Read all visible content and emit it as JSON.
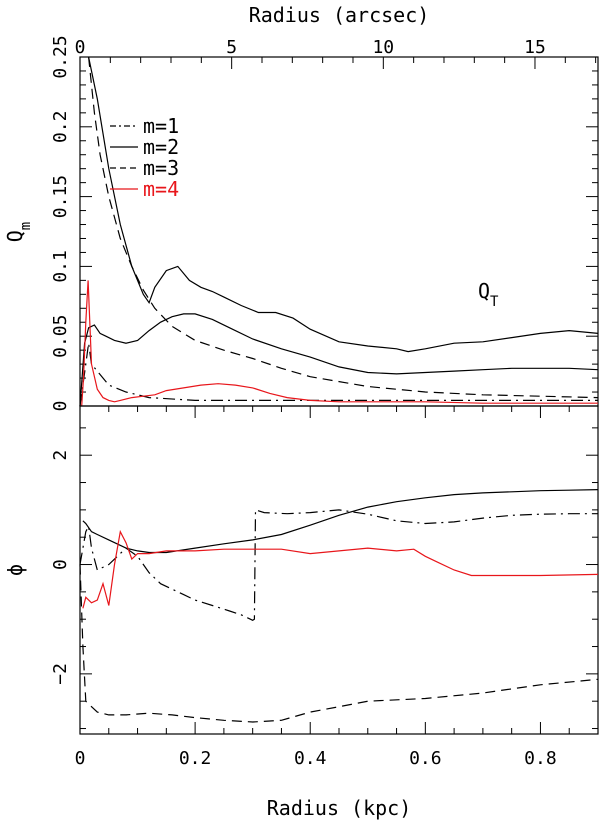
{
  "chart_data": [
    {
      "type": "line",
      "panel": "top",
      "top_axis_label": "Radius (arcsec)",
      "top_axis_ticks": [
        "0",
        "5",
        "10",
        "15"
      ],
      "top_axis_tick_values_arcsec": [
        0,
        5,
        10,
        15
      ],
      "ylabel": "Q_m",
      "ylim": [
        0,
        0.25
      ],
      "xlim": [
        0,
        0.9
      ],
      "yticks": [
        "0",
        "0.05",
        "0.1",
        "0.15",
        "0.2",
        "0.25"
      ],
      "ytick_values": [
        0,
        0.05,
        0.1,
        0.15,
        0.2,
        0.25
      ],
      "annotation": "Q_T",
      "legend": [
        {
          "label": "m=1",
          "style": "dashdot",
          "color": "#000000"
        },
        {
          "label": "m=2",
          "style": "solid",
          "color": "#000000"
        },
        {
          "label": "m=3",
          "style": "dashed",
          "color": "#000000"
        },
        {
          "label": "m=4",
          "style": "solid",
          "color": "#e8161b"
        }
      ],
      "series": [
        {
          "name": "Q_T",
          "style": "solid",
          "color": "#000000",
          "x": [
            0.015,
            0.03,
            0.05,
            0.07,
            0.09,
            0.11,
            0.12,
            0.13,
            0.15,
            0.17,
            0.19,
            0.21,
            0.23,
            0.25,
            0.28,
            0.31,
            0.34,
            0.37,
            0.4,
            0.45,
            0.5,
            0.55,
            0.57,
            0.6,
            0.65,
            0.7,
            0.75,
            0.8,
            0.85,
            0.9
          ],
          "y": [
            0.25,
            0.22,
            0.17,
            0.13,
            0.1,
            0.08,
            0.074,
            0.085,
            0.097,
            0.1,
            0.09,
            0.085,
            0.082,
            0.078,
            0.072,
            0.067,
            0.067,
            0.063,
            0.055,
            0.046,
            0.043,
            0.041,
            0.039,
            0.041,
            0.045,
            0.046,
            0.049,
            0.052,
            0.054,
            0.052
          ]
        },
        {
          "name": "m=1",
          "style": "dashdot",
          "color": "#000000",
          "x": [
            0.0,
            0.01,
            0.015,
            0.02,
            0.03,
            0.05,
            0.08,
            0.12,
            0.2,
            0.3,
            0.4,
            0.5,
            0.6,
            0.7,
            0.8,
            0.9
          ],
          "y": [
            0.0,
            0.03,
            0.045,
            0.03,
            0.025,
            0.015,
            0.01,
            0.006,
            0.004,
            0.004,
            0.004,
            0.004,
            0.004,
            0.004,
            0.004,
            0.004
          ]
        },
        {
          "name": "m=2",
          "style": "solid",
          "color": "#000000",
          "x": [
            0.0,
            0.008,
            0.015,
            0.025,
            0.035,
            0.045,
            0.06,
            0.08,
            0.1,
            0.12,
            0.14,
            0.16,
            0.18,
            0.2,
            0.23,
            0.26,
            0.3,
            0.35,
            0.4,
            0.45,
            0.5,
            0.55,
            0.6,
            0.65,
            0.7,
            0.75,
            0.8,
            0.85,
            0.9
          ],
          "y": [
            0.0,
            0.045,
            0.056,
            0.058,
            0.052,
            0.05,
            0.047,
            0.045,
            0.047,
            0.054,
            0.06,
            0.064,
            0.066,
            0.066,
            0.062,
            0.056,
            0.048,
            0.041,
            0.035,
            0.028,
            0.024,
            0.023,
            0.024,
            0.025,
            0.026,
            0.027,
            0.027,
            0.027,
            0.026
          ]
        },
        {
          "name": "m=3",
          "style": "dashed",
          "color": "#000000",
          "x": [
            0.015,
            0.025,
            0.035,
            0.05,
            0.07,
            0.09,
            0.11,
            0.13,
            0.16,
            0.2,
            0.25,
            0.3,
            0.35,
            0.4,
            0.5,
            0.6,
            0.7,
            0.8,
            0.9
          ],
          "y": [
            0.25,
            0.21,
            0.18,
            0.15,
            0.12,
            0.1,
            0.083,
            0.07,
            0.057,
            0.047,
            0.04,
            0.034,
            0.027,
            0.021,
            0.014,
            0.01,
            0.008,
            0.007,
            0.006
          ]
        },
        {
          "name": "m=4",
          "style": "solid",
          "color": "#e8161b",
          "x": [
            0.003,
            0.006,
            0.01,
            0.014,
            0.02,
            0.03,
            0.04,
            0.05,
            0.06,
            0.07,
            0.09,
            0.11,
            0.13,
            0.15,
            0.18,
            0.21,
            0.24,
            0.27,
            0.3,
            0.33,
            0.36,
            0.4,
            0.45,
            0.5,
            0.6,
            0.7,
            0.8,
            0.9
          ],
          "y": [
            0.0,
            0.02,
            0.06,
            0.09,
            0.03,
            0.012,
            0.006,
            0.004,
            0.003,
            0.004,
            0.006,
            0.007,
            0.008,
            0.011,
            0.013,
            0.015,
            0.016,
            0.015,
            0.013,
            0.009,
            0.006,
            0.004,
            0.003,
            0.003,
            0.003,
            0.002,
            0.002,
            0.002
          ]
        }
      ]
    },
    {
      "type": "line",
      "panel": "bottom",
      "xlabel": "Radius (kpc)",
      "ylabel": "ϕ",
      "xlim": [
        0,
        0.9
      ],
      "ylim": [
        -3.1,
        2.9
      ],
      "xticks": [
        "0",
        "0.2",
        "0.4",
        "0.6",
        "0.8"
      ],
      "xtick_values": [
        0,
        0.2,
        0.4,
        0.6,
        0.8
      ],
      "yticks": [
        "−2",
        "0",
        "2"
      ],
      "ytick_values": [
        -2,
        0,
        2
      ],
      "series": [
        {
          "name": "m=1",
          "style": "dashdot",
          "color": "#000000",
          "x": [
            0.0,
            0.01,
            0.015,
            0.02,
            0.03,
            0.05,
            0.08,
            0.1,
            0.12,
            0.14,
            0.16,
            0.18,
            0.2,
            0.23,
            0.26,
            0.28,
            0.3,
            0.303,
            0.305,
            0.32,
            0.36,
            0.4,
            0.45,
            0.5,
            0.55,
            0.6,
            0.65,
            0.7,
            0.75,
            0.8,
            0.85,
            0.9
          ],
          "y": [
            0.0,
            0.6,
            0.7,
            0.3,
            -0.1,
            0.0,
            0.3,
            0.15,
            -0.15,
            -0.35,
            -0.45,
            -0.55,
            -0.65,
            -0.75,
            -0.85,
            -0.92,
            -1.02,
            -1.0,
            1.0,
            0.95,
            0.93,
            0.95,
            1.0,
            0.92,
            0.8,
            0.75,
            0.78,
            0.85,
            0.9,
            0.92,
            0.93,
            0.93
          ]
        },
        {
          "name": "m=2",
          "style": "solid",
          "color": "#000000",
          "x": [
            0.005,
            0.01,
            0.02,
            0.03,
            0.05,
            0.08,
            0.1,
            0.12,
            0.15,
            0.2,
            0.25,
            0.3,
            0.35,
            0.4,
            0.45,
            0.5,
            0.55,
            0.6,
            0.65,
            0.7,
            0.75,
            0.8,
            0.85,
            0.9
          ],
          "y": [
            0.8,
            0.75,
            0.6,
            0.55,
            0.45,
            0.3,
            0.25,
            0.22,
            0.22,
            0.3,
            0.38,
            0.45,
            0.55,
            0.72,
            0.9,
            1.05,
            1.15,
            1.22,
            1.28,
            1.31,
            1.33,
            1.35,
            1.36,
            1.37
          ]
        },
        {
          "name": "m=3",
          "style": "dashed",
          "color": "#000000",
          "x": [
            0.0,
            0.005,
            0.01,
            0.015,
            0.03,
            0.05,
            0.08,
            0.12,
            0.16,
            0.2,
            0.25,
            0.3,
            0.35,
            0.4,
            0.45,
            0.5,
            0.6,
            0.7,
            0.8,
            0.9
          ],
          "y": [
            0.0,
            -1.5,
            -2.5,
            -2.55,
            -2.7,
            -2.75,
            -2.75,
            -2.72,
            -2.75,
            -2.8,
            -2.85,
            -2.88,
            -2.85,
            -2.7,
            -2.6,
            -2.5,
            -2.45,
            -2.35,
            -2.2,
            -2.1
          ]
        },
        {
          "name": "m=4",
          "style": "solid",
          "color": "#e8161b",
          "x": [
            0.005,
            0.01,
            0.02,
            0.03,
            0.04,
            0.05,
            0.06,
            0.07,
            0.08,
            0.09,
            0.1,
            0.12,
            0.15,
            0.2,
            0.25,
            0.3,
            0.35,
            0.4,
            0.45,
            0.5,
            0.55,
            0.58,
            0.6,
            0.62,
            0.65,
            0.68,
            0.72,
            0.8,
            0.9
          ],
          "y": [
            -0.8,
            -0.6,
            -0.7,
            -0.65,
            -0.35,
            -0.75,
            0.0,
            0.6,
            0.4,
            0.1,
            0.2,
            0.2,
            0.25,
            0.25,
            0.28,
            0.28,
            0.28,
            0.2,
            0.25,
            0.3,
            0.25,
            0.28,
            0.15,
            0.05,
            -0.1,
            -0.2,
            -0.2,
            -0.2,
            -0.18
          ]
        }
      ]
    }
  ]
}
